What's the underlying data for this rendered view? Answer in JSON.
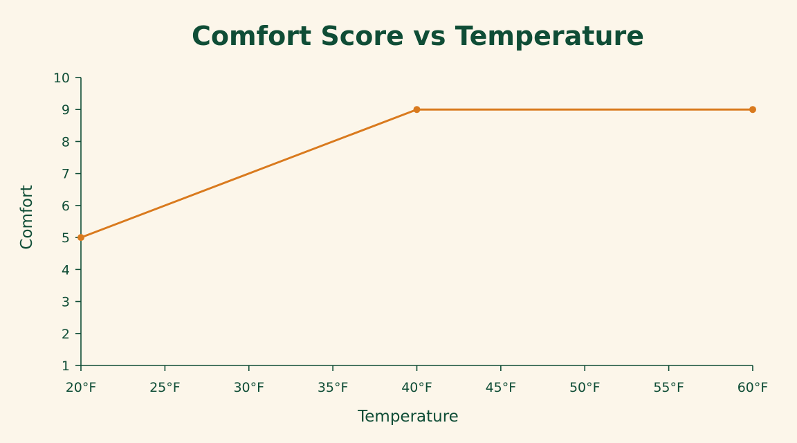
{
  "chart_data": {
    "type": "line",
    "title": "Comfort Score vs Temperature",
    "xlabel": "Temperature",
    "ylabel": "Comfort",
    "x_ticks": [
      "20°F",
      "25°F",
      "30°F",
      "35°F",
      "40°F",
      "45°F",
      "50°F",
      "55°F",
      "60°F"
    ],
    "xlim": [
      20,
      60
    ],
    "ylim": [
      1,
      10
    ],
    "y_ticks": [
      1,
      2,
      3,
      4,
      5,
      6,
      7,
      8,
      9,
      10
    ],
    "grid": false,
    "series": [
      {
        "x": [
          20,
          40,
          60
        ],
        "y": [
          5,
          9,
          9
        ],
        "color": "#d97a1e"
      }
    ]
  },
  "colors": {
    "background": "#fcf6ea",
    "text": "#0f4d36",
    "line": "#d97a1e"
  }
}
